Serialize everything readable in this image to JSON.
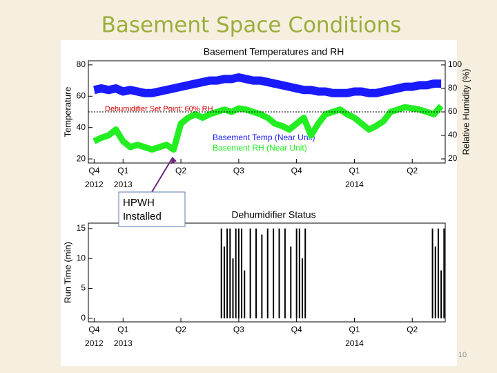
{
  "title": "Basement Space Conditions",
  "page_number": "10",
  "annotation": {
    "text": "HPWH Installed",
    "x": 1
  },
  "chart_data": [
    {
      "type": "line",
      "title": "Basement Temperatures and RH",
      "ylabel": "Temperature",
      "y2label": "Relative Humidity (%)",
      "ylim": [
        17.4,
        82.6
      ],
      "yticks": [
        20,
        40,
        60,
        80
      ],
      "y2lim": [
        16.5,
        103.5
      ],
      "y2ticks": [
        20,
        40,
        60,
        80,
        100
      ],
      "xlim": [
        -0.6,
        5.57
      ],
      "xticks": [
        {
          "value": -0.5,
          "label": "Q4",
          "year": "2012"
        },
        {
          "value": 0,
          "label": "Q1",
          "year": "2013"
        },
        {
          "value": 1,
          "label": "Q2"
        },
        {
          "value": 2,
          "label": "Q3"
        },
        {
          "value": 3,
          "label": "Q4"
        },
        {
          "value": 4,
          "label": "Q1",
          "year": "2014"
        },
        {
          "value": 5,
          "label": "Q2"
        }
      ],
      "setpoint": {
        "label": "Dehumidifier Set Point: 60% RH",
        "value": 60,
        "axis": "y2",
        "color": "#cc0000"
      },
      "x": [
        -0.5,
        -0.375,
        -0.25,
        -0.125,
        0,
        0.125,
        0.25,
        0.375,
        0.5,
        0.625,
        0.75,
        0.875,
        1,
        1.125,
        1.25,
        1.375,
        1.5,
        1.625,
        1.75,
        1.875,
        2,
        2.125,
        2.25,
        2.375,
        2.5,
        2.625,
        2.75,
        2.875,
        3,
        3.125,
        3.25,
        3.375,
        3.5,
        3.625,
        3.75,
        3.875,
        4,
        4.125,
        4.25,
        4.375,
        4.5,
        4.625,
        4.75,
        4.875,
        5,
        5.125,
        5.25,
        5.375,
        5.5
      ],
      "series": [
        {
          "name": "Basement Temp (Near Unit)",
          "color": "#1a1aff",
          "values": [
            64,
            65,
            64,
            65,
            63,
            64,
            63,
            62,
            62,
            63,
            64,
            65,
            66,
            67,
            68,
            69,
            70,
            70,
            71,
            71,
            72,
            71,
            70,
            70,
            69,
            68,
            67,
            66,
            65,
            64,
            64,
            63,
            63,
            62,
            62,
            62,
            63,
            63,
            62,
            62,
            63,
            64,
            65,
            66,
            66,
            67,
            67,
            68,
            68
          ]
        },
        {
          "name": "Basement RH (Near Unit)",
          "color": "#22ee22",
          "axis": "y2",
          "values": [
            35,
            38,
            40,
            45,
            35,
            30,
            32,
            30,
            28,
            30,
            32,
            28,
            50,
            55,
            58,
            55,
            58,
            60,
            62,
            60,
            63,
            62,
            60,
            58,
            55,
            50,
            48,
            45,
            50,
            55,
            40,
            50,
            58,
            60,
            62,
            58,
            55,
            50,
            45,
            48,
            52,
            60,
            62,
            64,
            63,
            62,
            60,
            58,
            65
          ]
        }
      ]
    },
    {
      "type": "spike",
      "title": "Dehumidifier Status",
      "ylabel": "Run Time (min)",
      "ylim": [
        -0.6,
        15.9
      ],
      "yticks": [
        0,
        5,
        10,
        15
      ],
      "xlim": [
        -0.6,
        5.57
      ],
      "xticks": [
        {
          "value": -0.5,
          "label": "Q4",
          "year": "2012"
        },
        {
          "value": 0,
          "label": "Q1",
          "year": "2013"
        },
        {
          "value": 1,
          "label": "Q2"
        },
        {
          "value": 2,
          "label": "Q3"
        },
        {
          "value": 3,
          "label": "Q4"
        },
        {
          "value": 4,
          "label": "Q1",
          "year": "2014"
        },
        {
          "value": 5,
          "label": "Q2"
        }
      ],
      "color": "#000000",
      "x": [
        1.7,
        1.75,
        1.8,
        1.85,
        1.9,
        1.95,
        2.0,
        2.05,
        2.1,
        2.2,
        2.3,
        2.4,
        2.5,
        2.6,
        2.7,
        2.8,
        2.9,
        3.0,
        3.05,
        3.1,
        3.15,
        5.35,
        5.4,
        5.45,
        5.5,
        5.55
      ],
      "values": [
        15,
        12,
        15,
        15,
        10,
        15,
        15,
        15,
        8,
        15,
        15,
        14,
        15,
        15,
        15,
        15,
        12,
        15,
        15,
        10,
        15,
        15,
        12,
        15,
        8,
        15
      ]
    }
  ]
}
